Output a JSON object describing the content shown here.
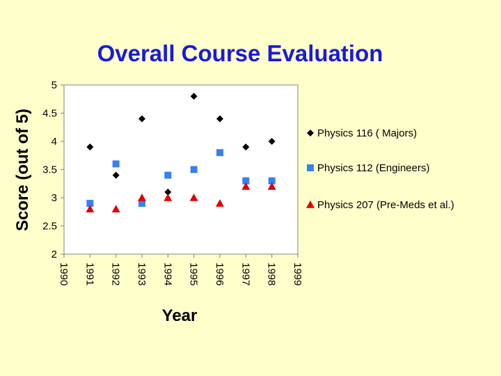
{
  "chart_data": {
    "type": "scatter",
    "title": "Overall Course Evaluation",
    "xlabel": "Year",
    "ylabel": "Score (out of 5)",
    "xlim": [
      1990,
      1999
    ],
    "ylim": [
      2,
      5
    ],
    "xticks": [
      "1990",
      "1991",
      "1992",
      "1993",
      "1994",
      "1995",
      "1996",
      "1997",
      "1998",
      "1999"
    ],
    "yticks": [
      "2",
      "2.5",
      "3",
      "3.5",
      "4",
      "4.5",
      "5"
    ],
    "legend_position": "right",
    "series": [
      {
        "name": "Physics 116 ( Majors)",
        "marker": "diamond",
        "color": "#000000",
        "x": [
          1991,
          1992,
          1993,
          1994,
          1995,
          1996,
          1997,
          1998
        ],
        "y": [
          3.9,
          3.4,
          4.4,
          3.1,
          4.8,
          4.4,
          3.9,
          4.0
        ]
      },
      {
        "name": "Physics 112 (Engineers)",
        "marker": "square",
        "color": "#3a7ff0",
        "x": [
          1991,
          1992,
          1993,
          1994,
          1995,
          1996,
          1997,
          1998
        ],
        "y": [
          2.9,
          3.6,
          2.9,
          3.4,
          3.5,
          3.8,
          3.3,
          3.3
        ]
      },
      {
        "name": "Physics 207 (Pre-Meds et al.)",
        "marker": "triangle",
        "color": "#e00000",
        "x": [
          1991,
          1992,
          1993,
          1994,
          1995,
          1996,
          1997,
          1998
        ],
        "y": [
          2.8,
          2.8,
          3.0,
          3.0,
          3.0,
          2.9,
          3.2,
          3.2
        ]
      }
    ]
  }
}
